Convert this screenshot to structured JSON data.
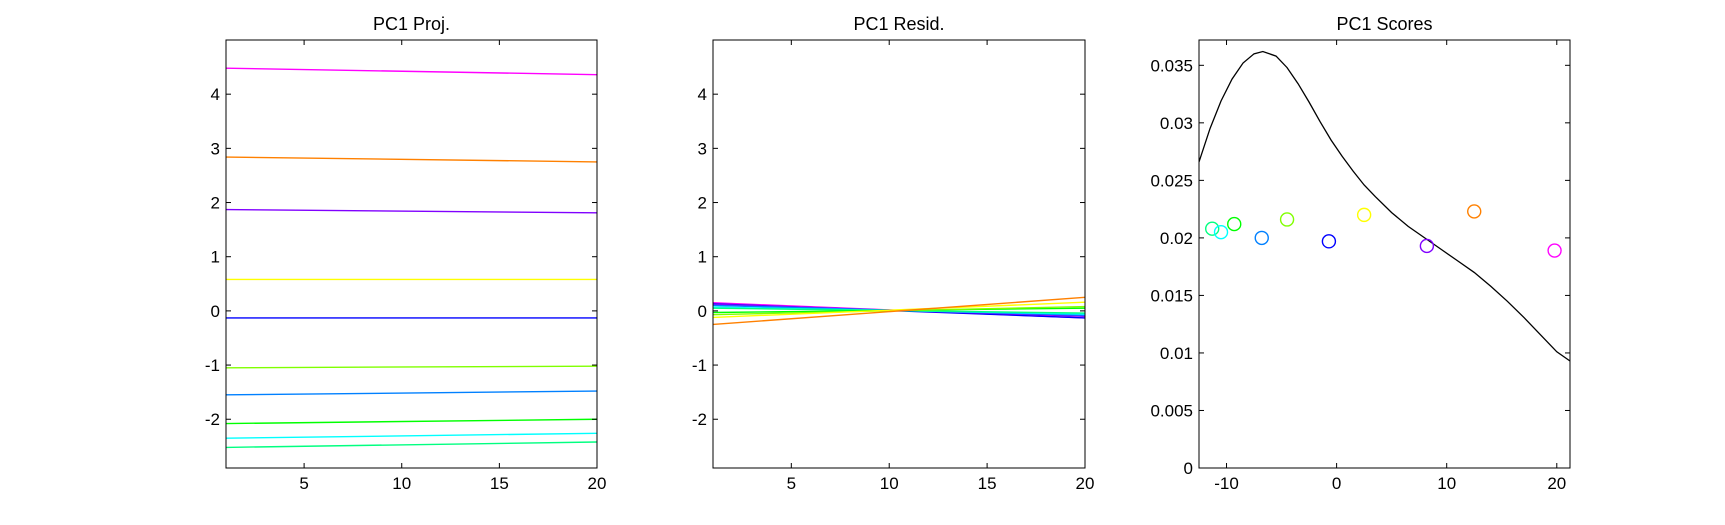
{
  "chart_data": [
    {
      "type": "line",
      "title": "PC1 Proj.",
      "xlabel": "",
      "ylabel": "",
      "xlim": [
        1,
        20
      ],
      "ylim": [
        -2.9,
        5.0
      ],
      "xticks": [
        5,
        10,
        15,
        20
      ],
      "yticks": [
        -2,
        -1,
        0,
        1,
        2,
        3,
        4
      ],
      "grid": false,
      "series": [
        {
          "color": "#ff00ff",
          "x": [
            1,
            20
          ],
          "y": [
            4.48,
            4.36
          ]
        },
        {
          "color": "#ff8000",
          "x": [
            1,
            20
          ],
          "y": [
            2.84,
            2.75
          ]
        },
        {
          "color": "#8000ff",
          "x": [
            1,
            20
          ],
          "y": [
            1.87,
            1.81
          ]
        },
        {
          "color": "#ffff00",
          "x": [
            1,
            20
          ],
          "y": [
            0.58,
            0.58
          ]
        },
        {
          "color": "#0000ff",
          "x": [
            1,
            20
          ],
          "y": [
            -0.13,
            -0.13
          ]
        },
        {
          "color": "#80ff00",
          "x": [
            1,
            20
          ],
          "y": [
            -1.05,
            -1.02
          ]
        },
        {
          "color": "#0080ff",
          "x": [
            1,
            20
          ],
          "y": [
            -1.55,
            -1.48
          ]
        },
        {
          "color": "#00ff00",
          "x": [
            1,
            20
          ],
          "y": [
            -2.08,
            -2.0
          ]
        },
        {
          "color": "#00ffff",
          "x": [
            1,
            20
          ],
          "y": [
            -2.35,
            -2.26
          ]
        },
        {
          "color": "#00ff80",
          "x": [
            1,
            20
          ],
          "y": [
            -2.52,
            -2.42
          ]
        }
      ]
    },
    {
      "type": "line",
      "title": "PC1 Resid.",
      "xlabel": "",
      "ylabel": "",
      "xlim": [
        1,
        20
      ],
      "ylim": [
        -2.9,
        5.0
      ],
      "xticks": [
        5,
        10,
        15,
        20
      ],
      "yticks": [
        -2,
        -1,
        0,
        1,
        2,
        3,
        4
      ],
      "grid": false,
      "series": [
        {
          "color": "#ff00ff",
          "x": [
            1,
            20
          ],
          "y": [
            0.15,
            -0.13
          ]
        },
        {
          "color": "#0000ff",
          "x": [
            1,
            20
          ],
          "y": [
            0.13,
            -0.13
          ]
        },
        {
          "color": "#8000ff",
          "x": [
            1,
            20
          ],
          "y": [
            0.12,
            -0.1
          ]
        },
        {
          "color": "#0080ff",
          "x": [
            1,
            20
          ],
          "y": [
            0.1,
            -0.08
          ]
        },
        {
          "color": "#00ffff",
          "x": [
            1,
            20
          ],
          "y": [
            0.07,
            -0.06
          ]
        },
        {
          "color": "#00ff80",
          "x": [
            1,
            20
          ],
          "y": [
            0.05,
            -0.04
          ]
        },
        {
          "color": "#00ff00",
          "x": [
            1,
            20
          ],
          "y": [
            -0.03,
            0.05
          ]
        },
        {
          "color": "#80ff00",
          "x": [
            1,
            20
          ],
          "y": [
            -0.07,
            0.08
          ]
        },
        {
          "color": "#ffff00",
          "x": [
            1,
            20
          ],
          "y": [
            -0.12,
            0.16
          ]
        },
        {
          "color": "#ff8000",
          "x": [
            1,
            20
          ],
          "y": [
            -0.25,
            0.25
          ]
        }
      ]
    },
    {
      "type": "scatter",
      "title": "PC1 Scores",
      "xlabel": "",
      "ylabel": "",
      "xlim": [
        -12.5,
        21.2
      ],
      "ylim": [
        0,
        0.0372
      ],
      "xticks": [
        -10,
        0,
        10,
        20
      ],
      "yticks": [
        0,
        0.005,
        0.01,
        0.015,
        0.02,
        0.025,
        0.03,
        0.035
      ],
      "grid": false,
      "curve": {
        "color": "#000000",
        "x": [
          -12.5,
          -11.5,
          -10.5,
          -9.5,
          -8.5,
          -7.5,
          -6.7,
          -5.5,
          -4.5,
          -3.5,
          -2.5,
          -1.5,
          -0.5,
          0.5,
          1.5,
          2.5,
          3.5,
          5.0,
          6.5,
          8.0,
          9.5,
          11.0,
          12.5,
          14.0,
          15.5,
          17.0,
          18.5,
          20.0,
          21.2
        ],
        "y": [
          0.0266,
          0.0295,
          0.0319,
          0.0338,
          0.0352,
          0.036,
          0.0362,
          0.0358,
          0.0348,
          0.0334,
          0.0318,
          0.0301,
          0.0285,
          0.0271,
          0.0258,
          0.0246,
          0.0236,
          0.0222,
          0.021,
          0.02,
          0.019,
          0.018,
          0.017,
          0.0158,
          0.0145,
          0.0131,
          0.0116,
          0.0101,
          0.0093
        ]
      },
      "points": [
        {
          "x": -11.3,
          "y": 0.0208,
          "color": "#00ff80"
        },
        {
          "x": -10.5,
          "y": 0.0205,
          "color": "#00ffff"
        },
        {
          "x": -9.3,
          "y": 0.0212,
          "color": "#00ff00"
        },
        {
          "x": -6.8,
          "y": 0.02,
          "color": "#0080ff"
        },
        {
          "x": -4.5,
          "y": 0.0216,
          "color": "#80ff00"
        },
        {
          "x": -0.7,
          "y": 0.0197,
          "color": "#0000ff"
        },
        {
          "x": 2.5,
          "y": 0.022,
          "color": "#ffff00"
        },
        {
          "x": 8.2,
          "y": 0.0193,
          "color": "#8000ff"
        },
        {
          "x": 12.5,
          "y": 0.0223,
          "color": "#ff8000"
        },
        {
          "x": 19.8,
          "y": 0.0189,
          "color": "#ff00ff"
        }
      ]
    }
  ]
}
